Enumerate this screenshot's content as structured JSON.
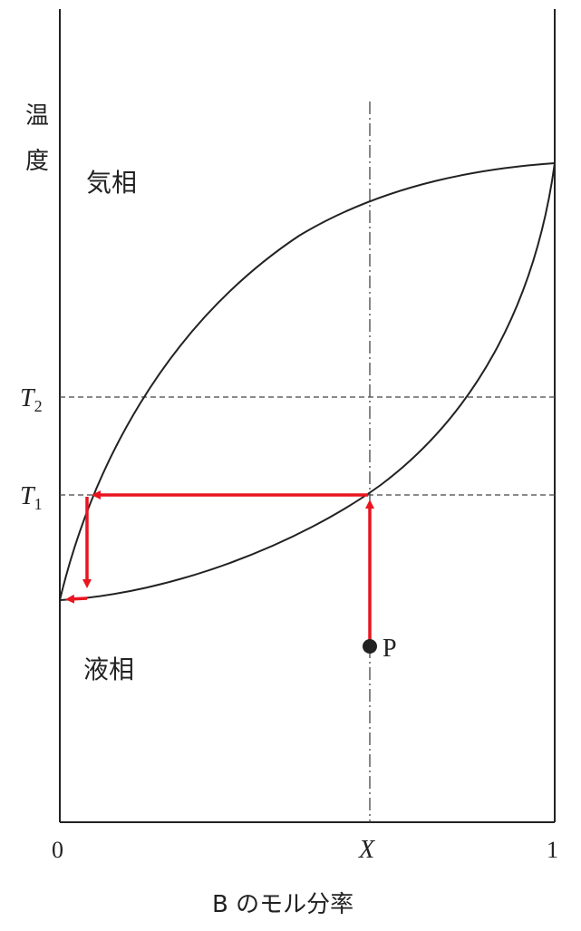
{
  "axis": {
    "y_label_chars": [
      "温",
      "度"
    ],
    "x_label": "B のモル分率",
    "x_tick_start": "0",
    "x_tick_mid": "X",
    "x_tick_end": "1"
  },
  "regions": {
    "vapor": "気相",
    "liquid": "液相"
  },
  "temperature_levels": {
    "t1": {
      "base": "T",
      "sub": "1"
    },
    "t2": {
      "base": "T",
      "sub": "2"
    }
  },
  "point": {
    "label": "P"
  },
  "colors": {
    "curve": "#222222",
    "guide": "#444444",
    "arrow": "#e8151f",
    "point": "#222222"
  }
}
